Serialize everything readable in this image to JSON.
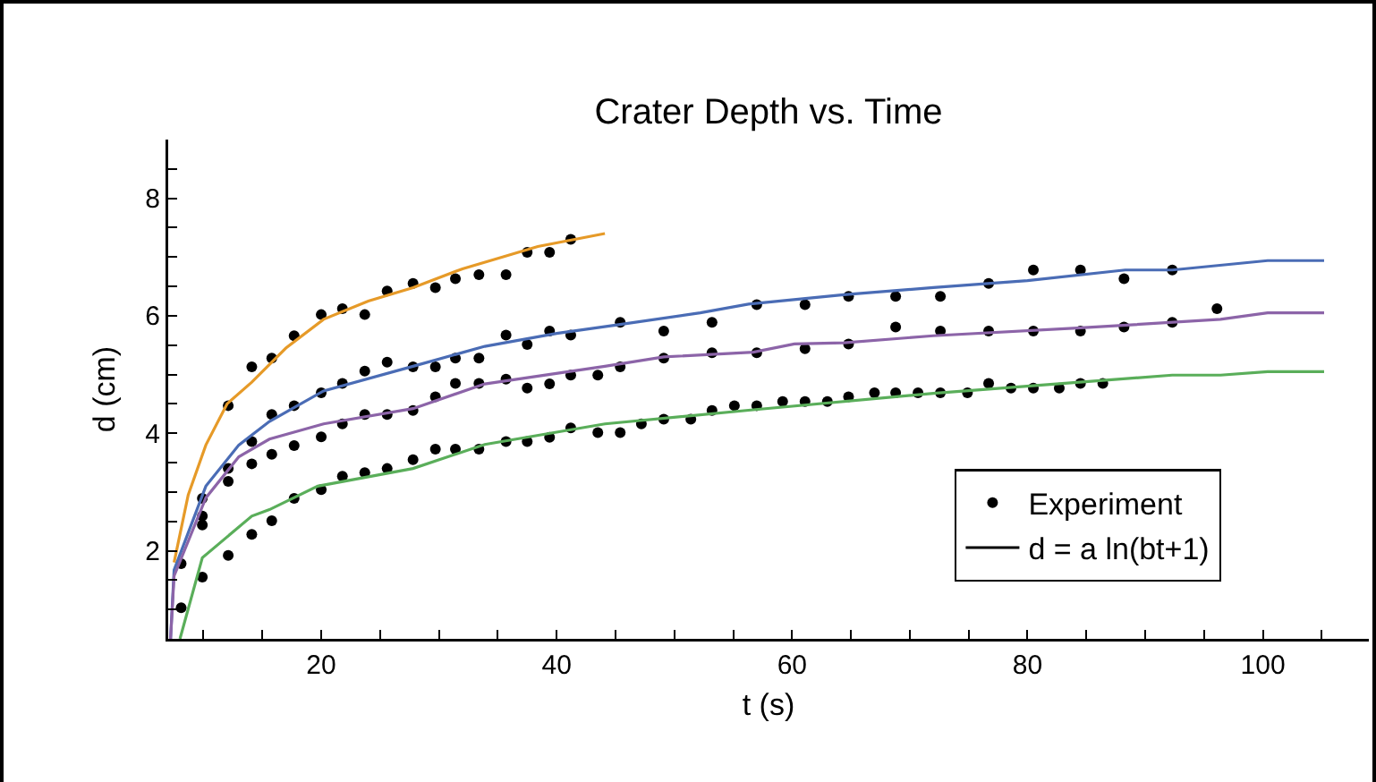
{
  "chart_data": {
    "type": "line",
    "title": "Crater Depth vs. Time",
    "xlabel": "t (s)",
    "ylabel": "d (cm)",
    "xlim": [
      7,
      109
    ],
    "ylim": [
      0.5,
      9
    ],
    "xticks": [
      {
        "value": 10,
        "label": null
      },
      {
        "value": 15,
        "label": null
      },
      20,
      {
        "value": 25,
        "label": null
      },
      {
        "value": 30,
        "label": null
      },
      {
        "value": 35,
        "label": null
      },
      40,
      {
        "value": 45,
        "label": null
      },
      {
        "value": 50,
        "label": null
      },
      {
        "value": 55,
        "label": null
      },
      60,
      {
        "value": 65,
        "label": null
      },
      {
        "value": 70,
        "label": null
      },
      {
        "value": 75,
        "label": null
      },
      80,
      {
        "value": 85,
        "label": null
      },
      {
        "value": 90,
        "label": null
      },
      {
        "value": 95,
        "label": null
      },
      100,
      {
        "value": 105,
        "label": null
      }
    ],
    "yticks": [
      {
        "value": 1,
        "label": null
      },
      {
        "value": 1.5,
        "label": null
      },
      2,
      {
        "value": 2.5,
        "label": null
      },
      {
        "value": 3,
        "label": null
      },
      {
        "value": 3.5,
        "label": null
      },
      4,
      {
        "value": 4.5,
        "label": null
      },
      {
        "value": 5,
        "label": null
      },
      {
        "value": 5.5,
        "label": null
      },
      6,
      {
        "value": 6.5,
        "label": null
      },
      {
        "value": 7,
        "label": null
      },
      {
        "value": 7.5,
        "label": null
      },
      8,
      {
        "value": 8.5,
        "label": null
      }
    ],
    "grid": false,
    "legend": "bottom right",
    "series": [
      {
        "type": "scatter",
        "name": "Experiment",
        "color": "#000000",
        "marker": "circle",
        "x": [
          8.1,
          8.1,
          9.9,
          9.9,
          9.9,
          9.9,
          12.1,
          12.1,
          12.1,
          12.1,
          14.1,
          14.1,
          14.1,
          14.1,
          15.8,
          15.8,
          15.8,
          15.8,
          17.7,
          17.7,
          17.7,
          17.7,
          20,
          20,
          20,
          20,
          21.8,
          21.8,
          21.8,
          21.8,
          23.7,
          23.7,
          23.7,
          23.7,
          25.6,
          25.6,
          25.6,
          25.6,
          27.8,
          27.8,
          27.8,
          27.8,
          29.7,
          29.7,
          29.7,
          29.7,
          31.4,
          31.4,
          31.4,
          31.4,
          33.4,
          33.4,
          33.4,
          33.4,
          35.7,
          35.7,
          35.7,
          35.7,
          37.5,
          37.5,
          37.5,
          37.5,
          39.4,
          39.4,
          39.4,
          39.4,
          41.2,
          41.2,
          41.2,
          41.2,
          43.5,
          43.5,
          45.4,
          45.4,
          45.4,
          47.2,
          49.1,
          49.1,
          49.1,
          51.4,
          53.2,
          53.2,
          53.2,
          55.1,
          57,
          57,
          57,
          59.2,
          61.1,
          61.1,
          61.1,
          63,
          64.8,
          64.8,
          64.8,
          67,
          68.8,
          68.8,
          68.8,
          70.7,
          72.6,
          72.6,
          72.6,
          74.9,
          76.7,
          76.7,
          76.7,
          78.6,
          80.5,
          80.5,
          80.5,
          82.7,
          84.5,
          84.5,
          84.5,
          86.4,
          88.2,
          88.2,
          92.3,
          92.3,
          96.1
        ],
        "values": [
          1.78,
          1.03,
          2.89,
          2.59,
          2.44,
          1.55,
          4.47,
          3.4,
          3.18,
          1.92,
          5.13,
          3.86,
          3.48,
          2.28,
          5.28,
          4.32,
          3.64,
          2.51,
          5.66,
          4.47,
          3.79,
          2.89,
          6.02,
          4.69,
          3.94,
          3.04,
          6.12,
          4.85,
          4.16,
          3.27,
          6.02,
          5.06,
          4.32,
          3.33,
          6.42,
          5.21,
          4.32,
          3.4,
          6.55,
          5.13,
          4.39,
          3.55,
          6.48,
          5.13,
          4.62,
          3.73,
          6.63,
          5.28,
          4.85,
          3.73,
          6.7,
          5.28,
          4.85,
          3.73,
          6.7,
          5.67,
          4.92,
          3.86,
          7.08,
          5.51,
          4.77,
          3.86,
          7.08,
          5.74,
          4.84,
          3.93,
          7.3,
          5.67,
          4.99,
          4.09,
          4.99,
          4.01,
          5.89,
          5.13,
          4.01,
          4.16,
          5.74,
          5.28,
          4.24,
          4.24,
          5.89,
          5.37,
          4.39,
          4.47,
          6.19,
          5.37,
          4.47,
          4.54,
          6.19,
          5.44,
          4.54,
          4.54,
          6.33,
          5.52,
          4.62,
          4.69,
          6.33,
          5.81,
          4.69,
          4.69,
          6.33,
          5.74,
          4.69,
          4.69,
          6.55,
          5.74,
          4.85,
          4.77,
          6.78,
          5.74,
          4.77,
          4.77,
          6.78,
          5.74,
          4.85,
          4.85,
          6.63,
          5.81,
          6.78,
          5.89,
          6.12
        ]
      },
      {
        "color": "#e69a28",
        "x": [
          7.5,
          8.7,
          10.2,
          12,
          14.1,
          17,
          20.2,
          24,
          27.8,
          32,
          35.4,
          38.4,
          44.1
        ],
        "values": [
          1.8,
          2.95,
          3.8,
          4.5,
          4.87,
          5.45,
          5.94,
          6.25,
          6.48,
          6.8,
          7.0,
          7.18,
          7.4
        ]
      },
      {
        "color": "#4a6cb5",
        "x": [
          7.2,
          7.5,
          10.2,
          13,
          15.6,
          20.2,
          27.8,
          33.9,
          40,
          45,
          52.2,
          56.3,
          64.4,
          72,
          80,
          88.3,
          92.3,
          100.4,
          105.2
        ],
        "values": [
          0.5,
          1.67,
          3.1,
          3.8,
          4.2,
          4.72,
          5.14,
          5.48,
          5.7,
          5.84,
          6.05,
          6.2,
          6.36,
          6.48,
          6.6,
          6.78,
          6.78,
          6.94,
          6.94
        ]
      },
      {
        "color": "#8c64a8",
        "x": [
          7.2,
          7.5,
          10.2,
          13,
          15.6,
          20.2,
          27.8,
          33.9,
          44.1,
          49.1,
          56.7,
          60.2,
          64.4,
          72,
          84.2,
          96.4,
          100.4,
          105.2
        ],
        "values": [
          0.5,
          1.57,
          2.9,
          3.6,
          3.9,
          4.16,
          4.42,
          4.84,
          5.14,
          5.3,
          5.38,
          5.52,
          5.54,
          5.66,
          5.79,
          5.94,
          6.05,
          6.05
        ]
      },
      {
        "color": "#5aae5a",
        "x": [
          8,
          9.9,
          14.1,
          15.6,
          19.7,
          27.8,
          33.9,
          44.1,
          56.7,
          72,
          92.3,
          96.4,
          100.4,
          105.2
        ],
        "values": [
          0.5,
          1.88,
          2.59,
          2.7,
          3.1,
          3.4,
          3.81,
          4.16,
          4.4,
          4.68,
          4.99,
          4.99,
          5.05,
          5.05
        ]
      },
      {
        "name": "d = a ln(bt+1)",
        "color": "#000000"
      }
    ]
  }
}
